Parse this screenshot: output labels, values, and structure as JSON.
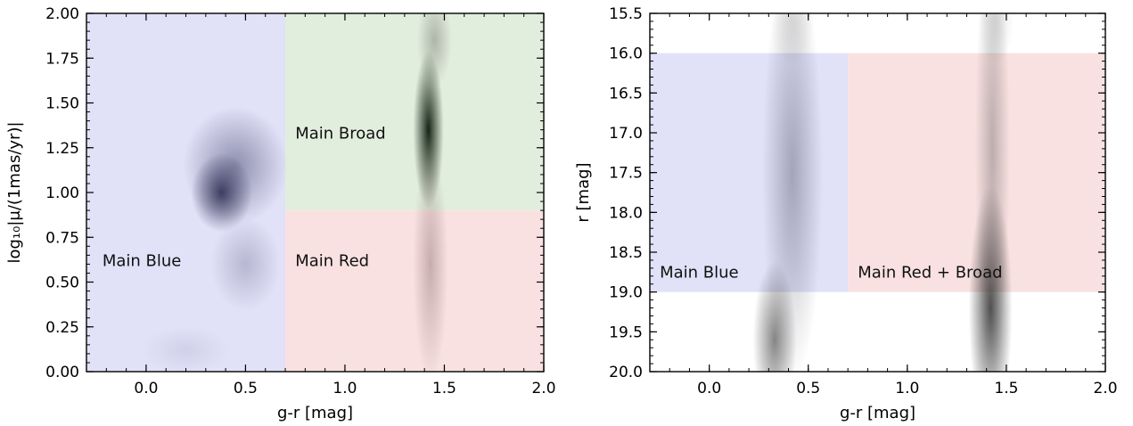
{
  "chart_data": [
    {
      "type": "heatmap",
      "xlabel": "g-r [mag]",
      "ylabel": "log₁₀|μ/(1mas/yr)|",
      "xlim": [
        -0.3,
        2.0
      ],
      "ylim": [
        0.0,
        2.0
      ],
      "y_inverted": false,
      "xticks": [
        0.0,
        0.5,
        1.0,
        1.5,
        2.0
      ],
      "xtick_labels": [
        "0.0",
        "0.5",
        "1.0",
        "1.5",
        "2.0"
      ],
      "yticks": [
        0.0,
        0.25,
        0.5,
        0.75,
        1.0,
        1.25,
        1.5,
        1.75,
        2.0
      ],
      "ytick_labels": [
        "0.00",
        "0.25",
        "0.50",
        "0.75",
        "1.00",
        "1.25",
        "1.50",
        "1.75",
        "2.00"
      ],
      "grid": false,
      "regions": [
        {
          "label": "Main Blue",
          "color": "#e1e1f8",
          "x": [
            -0.3,
            0.7
          ],
          "y": [
            0.0,
            2.0
          ],
          "label_at": [
            -0.22,
            0.62
          ]
        },
        {
          "label": "Main Broad",
          "color": "#e2eedd",
          "x": [
            0.7,
            2.0
          ],
          "y": [
            0.9,
            2.0
          ],
          "label_at": [
            0.75,
            1.33
          ]
        },
        {
          "label": "Main Red",
          "color": "#f9e1e1",
          "x": [
            0.7,
            2.0
          ],
          "y": [
            0.0,
            0.9
          ],
          "label_at": [
            0.75,
            0.62
          ]
        }
      ],
      "density_clumps": [
        {
          "x": 0.38,
          "y": 1.0,
          "sx": 0.07,
          "sy": 0.1,
          "weight": 0.8,
          "color": "#1a1a40"
        },
        {
          "x": 0.45,
          "y": 1.15,
          "sx": 0.12,
          "sy": 0.15,
          "weight": 0.45,
          "color": "#2a2a55"
        },
        {
          "x": 0.5,
          "y": 0.6,
          "sx": 0.08,
          "sy": 0.12,
          "weight": 0.25,
          "color": "#3a3a60"
        },
        {
          "x": 1.42,
          "y": 1.35,
          "sx": 0.035,
          "sy": 0.2,
          "weight": 0.95,
          "color": "#0a1a0a"
        },
        {
          "x": 1.45,
          "y": 1.85,
          "sx": 0.04,
          "sy": 0.12,
          "weight": 0.3,
          "color": "#333333"
        },
        {
          "x": 1.43,
          "y": 0.6,
          "sx": 0.04,
          "sy": 0.3,
          "weight": 0.3,
          "color": "#553333"
        },
        {
          "x": 0.2,
          "y": 0.12,
          "sx": 0.1,
          "sy": 0.06,
          "weight": 0.12,
          "color": "#555577"
        }
      ]
    },
    {
      "type": "heatmap",
      "xlabel": "g-r [mag]",
      "ylabel": "r [mag]",
      "xlim": [
        -0.3,
        2.0
      ],
      "ylim": [
        15.5,
        20.0
      ],
      "y_inverted": true,
      "xticks": [
        0.0,
        0.5,
        1.0,
        1.5,
        2.0
      ],
      "xtick_labels": [
        "0.0",
        "0.5",
        "1.0",
        "1.5",
        "2.0"
      ],
      "yticks": [
        15.5,
        16.0,
        16.5,
        17.0,
        17.5,
        18.0,
        18.5,
        19.0,
        19.5,
        20.0
      ],
      "ytick_labels": [
        "15.5",
        "16.0",
        "16.5",
        "17.0",
        "17.5",
        "18.0",
        "18.5",
        "19.0",
        "19.5",
        "20.0"
      ],
      "grid": false,
      "regions": [
        {
          "label": "Main Blue",
          "color": "#e1e1f8",
          "x": [
            -0.3,
            0.7
          ],
          "y": [
            16.0,
            19.0
          ],
          "label_at": [
            -0.25,
            18.75
          ]
        },
        {
          "label": "Main Red + Broad",
          "color": "#f9e1e1",
          "x": [
            0.7,
            2.0
          ],
          "y": [
            16.0,
            19.0
          ],
          "label_at": [
            0.75,
            18.75
          ]
        }
      ],
      "density_clumps": [
        {
          "x": 0.33,
          "y": 19.6,
          "sx": 0.05,
          "sy": 0.45,
          "weight": 0.55,
          "color": "#222222"
        },
        {
          "x": 0.42,
          "y": 17.5,
          "sx": 0.07,
          "sy": 1.2,
          "weight": 0.35,
          "color": "#333344"
        },
        {
          "x": 1.42,
          "y": 19.2,
          "sx": 0.05,
          "sy": 0.7,
          "weight": 0.75,
          "color": "#1a1a1a"
        },
        {
          "x": 1.43,
          "y": 17.2,
          "sx": 0.04,
          "sy": 1.3,
          "weight": 0.3,
          "color": "#333333"
        },
        {
          "x": 0.42,
          "y": 15.6,
          "sx": 0.05,
          "sy": 0.25,
          "weight": 0.15,
          "color": "#555555"
        },
        {
          "x": 1.45,
          "y": 15.6,
          "sx": 0.04,
          "sy": 0.25,
          "weight": 0.15,
          "color": "#555555"
        }
      ]
    }
  ]
}
